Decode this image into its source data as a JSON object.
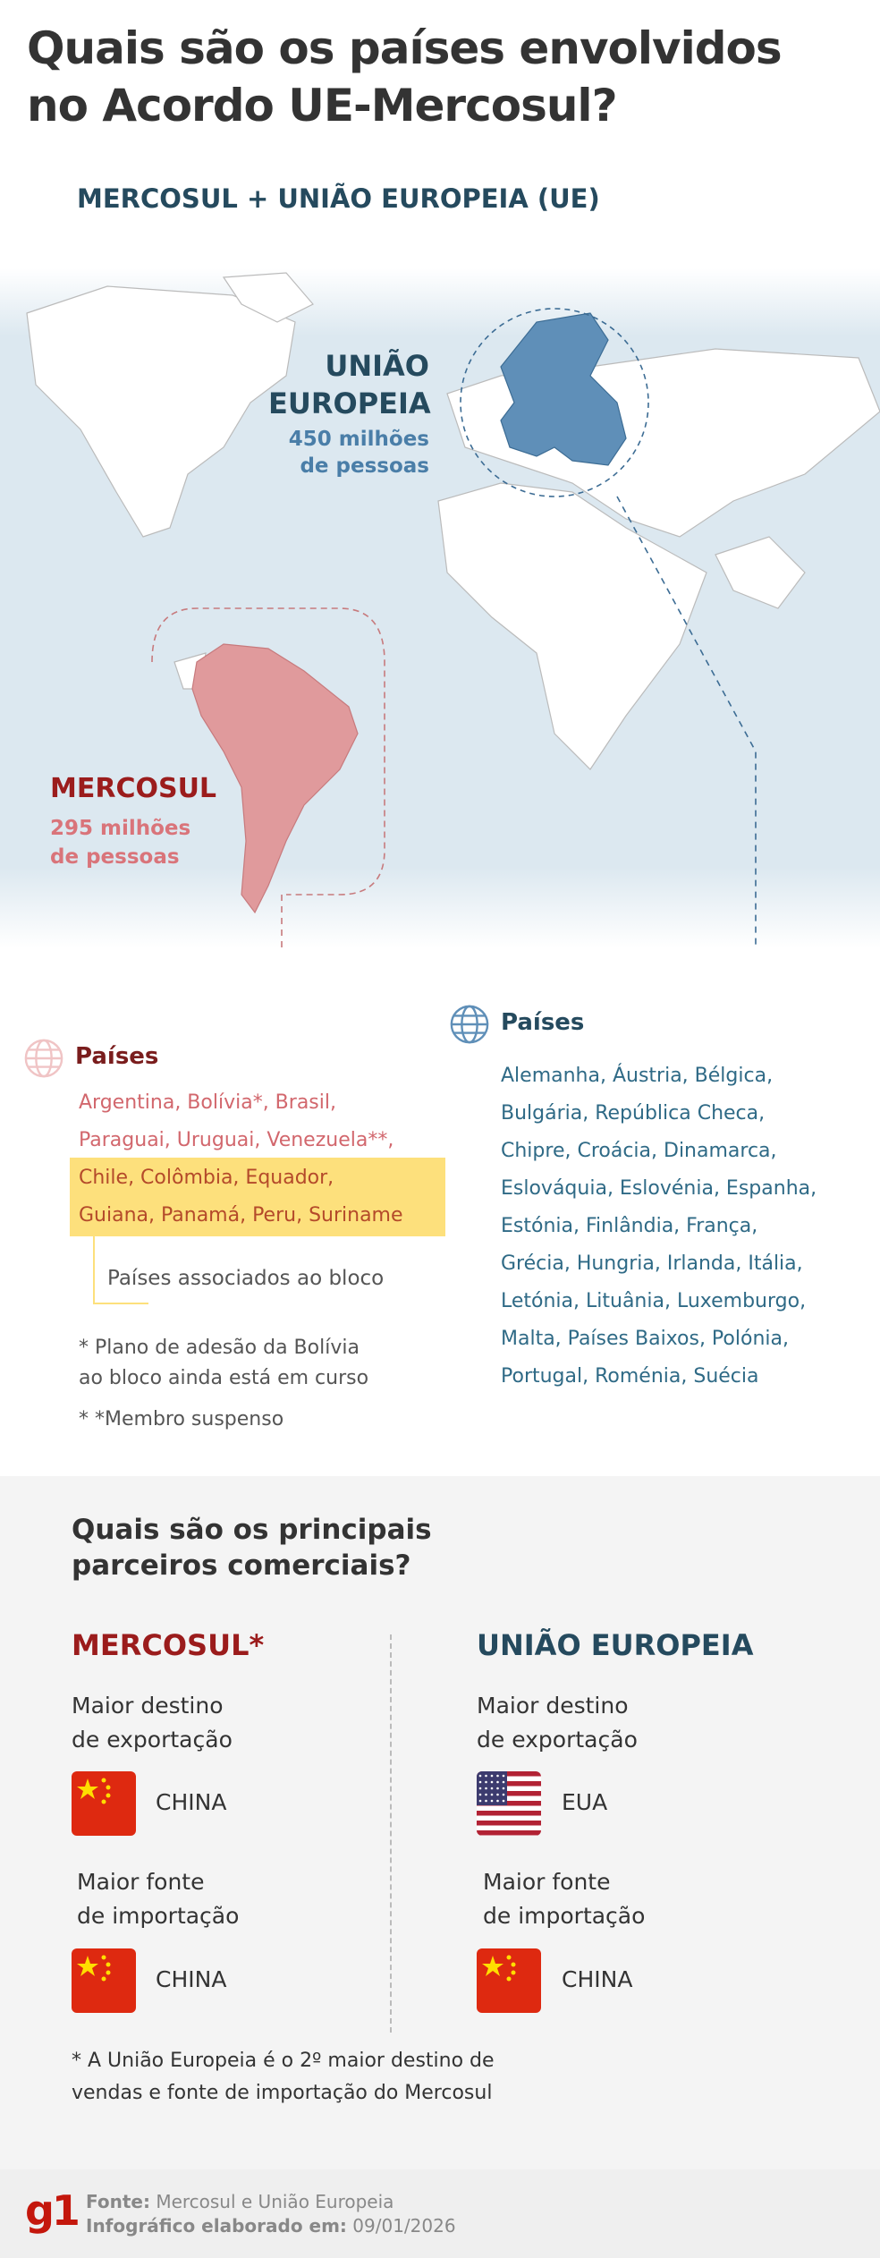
{
  "title": "Quais são os países envolvidos\nno Acordo UE-Mercosul?",
  "title_line1": "Quais são os países envolvidos",
  "title_line2": "no Acordo UE-Mercosul?",
  "subtitle": "MERCOSUL + UNIÃO EUROPEIA (UE)",
  "map": {
    "eu": {
      "label_line1": "UNIÃO",
      "label_line2": "EUROPEIA",
      "pop_line1": "450 milhões",
      "pop_line2": "de pessoas",
      "color": "#5f8fb8"
    },
    "mercosul": {
      "label": "MERCOSUL",
      "pop_line1": "295 milhões",
      "pop_line2": "de pessoas",
      "color": "#e09a9c"
    }
  },
  "mercosul_countries": {
    "heading": "Países",
    "lines": [
      "Argentina, Bolívia*, Brasil,",
      "Paraguai, Uruguai, Venezuela**,"
    ],
    "associated_lines": [
      "Chile, Colômbia, Equador,",
      "Guiana, Panamá, Peru, Suriname"
    ],
    "associated_label": "Países associados ao bloco",
    "note1_line1": "* Plano de adesão da Bolívia",
    "note1_line2": "ao bloco ainda está em curso",
    "note2": "* *Membro suspenso",
    "highlight_color": "#fde07c"
  },
  "eu_countries": {
    "heading": "Países",
    "lines": [
      "Alemanha, Áustria, Bélgica,",
      "Bulgária, República Checa,",
      "Chipre, Croácia, Dinamarca,",
      "Eslováquia, Eslovénia, Espanha,",
      "Estónia, Finlândia, França,",
      "Grécia, Hungria, Irlanda, Itália,",
      "Letónia, Lituânia, Luxemburgo,",
      "Malta, Países Baixos, Polónia,",
      "Portugal, Roménia, Suécia"
    ]
  },
  "partners": {
    "heading_line1": "Quais são os principais",
    "heading_line2": "parceiros comerciais?",
    "mercosul": {
      "title": "MERCOSUL*",
      "export_line1": "Maior destino",
      "export_line2": "de exportação",
      "export_country": "CHINA",
      "export_flag": "china-flag",
      "import_line1": "Maior fonte",
      "import_line2": "de importação",
      "import_country": "CHINA",
      "import_flag": "china-flag"
    },
    "eu": {
      "title": "UNIÃO EUROPEIA",
      "export_line1": "Maior destino",
      "export_line2": "de exportação",
      "export_country": "EUA",
      "export_flag": "usa-flag",
      "import_line1": "Maior fonte",
      "import_line2": "de importação",
      "import_country": "CHINA",
      "import_flag": "china-flag"
    },
    "note_line1": "* A União Europeia é o 2º maior destino de",
    "note_line2": "vendas e fonte de importação do Mercosul"
  },
  "footer": {
    "logo": "g1",
    "source_label": "Fonte:",
    "source": "Mercosul e União Europeia",
    "date_label": "Infográfico elaborado em:",
    "date": "09/01/2026"
  }
}
